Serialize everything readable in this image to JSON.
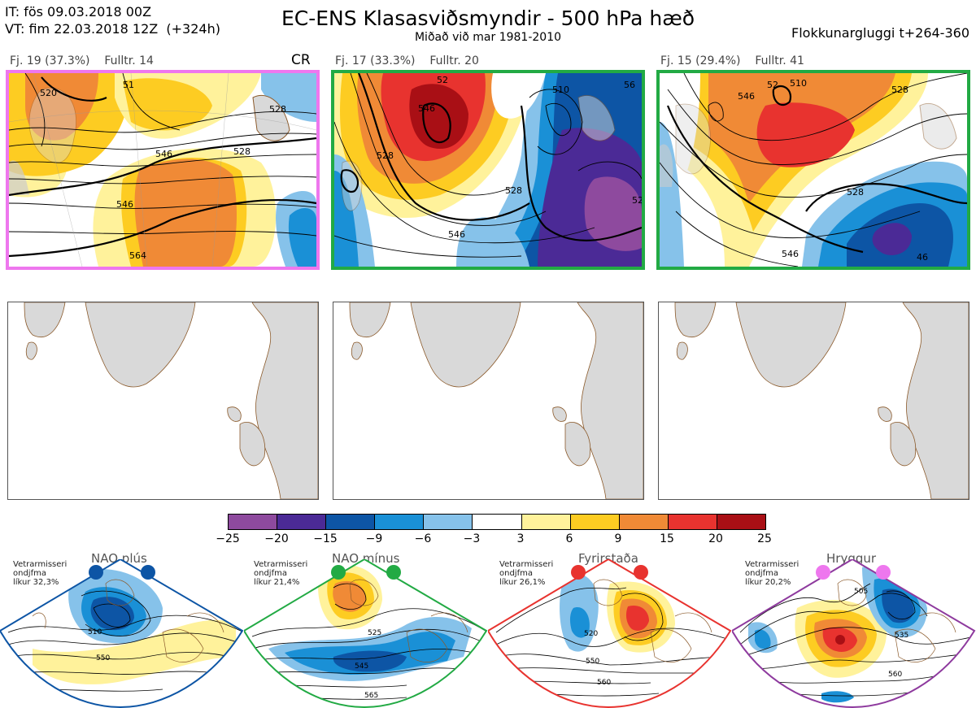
{
  "header": {
    "it_line": "IT: fös 09.03.2018 00Z",
    "vt_line": "VT: fim 22.03.2018 12Z  (+324h)",
    "title": "EC-ENS Klasasviðsmyndir - 500 hPa hæð",
    "subtitle": "Miðað við mar 1981-2010",
    "window": "Flokkunargluggi t+264-360"
  },
  "clusters": [
    {
      "members": "Fj. 19 (37.3%)",
      "rep": "Fulltr. 14",
      "regime_tag": "CR",
      "border_color": "#ee77ee",
      "contour_labels": [
        "520",
        "528",
        "546",
        "528",
        "546",
        "564",
        "51"
      ]
    },
    {
      "members": "Fj. 17 (33.3%)",
      "rep": "Fulltr. 20",
      "regime_tag": "",
      "border_color": "#22aa44",
      "contour_labels": [
        "546",
        "510",
        "528",
        "528",
        "528",
        "546",
        "52",
        "56"
      ]
    },
    {
      "members": "Fj. 15 (29.4%)",
      "rep": "Fulltr. 41",
      "regime_tag": "",
      "border_color": "#22aa44",
      "contour_labels": [
        "510",
        "546",
        "528",
        "528",
        "546",
        "52",
        "46"
      ]
    }
  ],
  "colorbar": {
    "ticks": [
      "−25",
      "−20",
      "−15",
      "−9",
      "−6",
      "−3",
      "3",
      "6",
      "9",
      "15",
      "20",
      "25"
    ],
    "colors": [
      "#8e4a9e",
      "#4b2a96",
      "#0d55a5",
      "#1a90d6",
      "#86c2ea",
      "#ffffff",
      "#fff29b",
      "#fdcc22",
      "#f08a36",
      "#e8332f",
      "#a90f15"
    ]
  },
  "regimes": [
    {
      "name": "NAO plús",
      "prob_text": "Vetrarmisseri\nondjfma\nlíkur 32,3%",
      "color": "#0d55a5",
      "labels": [
        "510",
        "550"
      ]
    },
    {
      "name": "NAO mínus",
      "prob_text": "Vetrarmisseri\nondjfma\nlíkur 21,4%",
      "color": "#22aa44",
      "labels": [
        "525",
        "545",
        "565"
      ]
    },
    {
      "name": "Fyrirstaða",
      "prob_text": "Vetrarmisseri\nondjfma\nlíkur 26,1%",
      "color": "#e8332f",
      "labels": [
        "520",
        "550",
        "560"
      ]
    },
    {
      "name": "Hryggur",
      "prob_text": "Vetrarmisseri\nondjfma\nlíkur 20,2%",
      "color": "#ee77ee",
      "labels": [
        "505",
        "535",
        "560"
      ]
    }
  ]
}
